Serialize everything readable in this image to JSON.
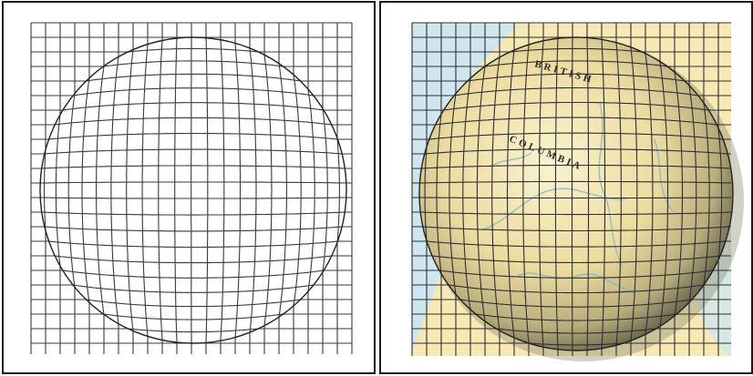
{
  "figure": {
    "panels": [
      {
        "id": "left",
        "content": "wireframe-sphere-on-grid"
      },
      {
        "id": "right",
        "content": "map-textured-sphere-on-grid"
      }
    ],
    "colors": {
      "frame": "#1a1a1a",
      "grid": "#3a3a3a",
      "sphere_outline": "#222222",
      "map_water": "#cfe6ee",
      "map_land": "#f6e9b4",
      "sphere_highlight": "#fbf3cf",
      "sphere_shadow": "#8d8a67",
      "river": "#7fb6c8"
    },
    "map_labels": {
      "top": "BRITISH",
      "middle": "COLUMBIA"
    }
  }
}
